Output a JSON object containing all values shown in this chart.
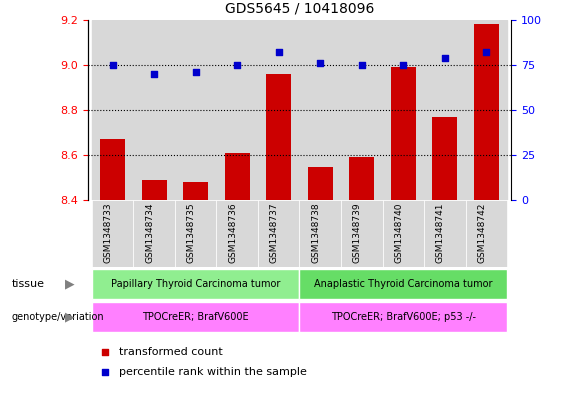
{
  "title": "GDS5645 / 10418096",
  "samples": [
    "GSM1348733",
    "GSM1348734",
    "GSM1348735",
    "GSM1348736",
    "GSM1348737",
    "GSM1348738",
    "GSM1348739",
    "GSM1348740",
    "GSM1348741",
    "GSM1348742"
  ],
  "transformed_count": [
    8.67,
    8.49,
    8.48,
    8.61,
    8.96,
    8.55,
    8.59,
    8.99,
    8.77,
    9.18
  ],
  "percentile_rank": [
    75,
    70,
    71,
    75,
    82,
    76,
    75,
    75,
    79,
    82
  ],
  "ylim_left": [
    8.4,
    9.2
  ],
  "ylim_right": [
    0,
    100
  ],
  "yticks_left": [
    8.4,
    8.6,
    8.8,
    9.0,
    9.2
  ],
  "yticks_right": [
    0,
    25,
    50,
    75,
    100
  ],
  "bar_color": "#cc0000",
  "dot_color": "#0000cc",
  "tissue_group1": "Papillary Thyroid Carcinoma tumor",
  "tissue_group2": "Anaplastic Thyroid Carcinoma tumor",
  "genotype_group1": "TPOCreER; BrafV600E",
  "genotype_group2": "TPOCreER; BrafV600E; p53 -/-",
  "tissue_color1": "#90ee90",
  "tissue_color2": "#66dd66",
  "genotype_color": "#ff80ff",
  "n_group1": 5,
  "n_group2": 5,
  "col_bg_color": "#d8d8d8",
  "divider_color": "#ffffff"
}
